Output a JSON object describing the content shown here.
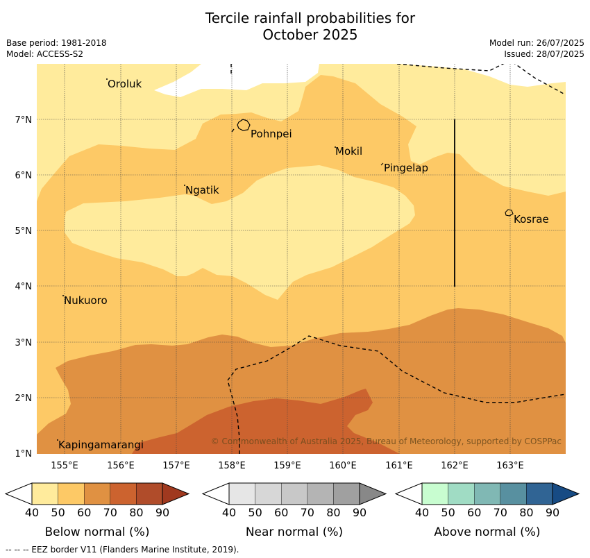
{
  "title_line1": "Tercile rainfall probabilities for",
  "title_line2": "October 2025",
  "meta": {
    "base_period": "Base period: 1981-2018",
    "model": "Model: ACCESS-S2",
    "model_run": "Model run: 26/07/2025",
    "issued": "Issued: 28/07/2025"
  },
  "map": {
    "lon_labels": [
      "155°E",
      "156°E",
      "157°E",
      "158°E",
      "159°E",
      "160°E",
      "161°E",
      "162°E",
      "163°E"
    ],
    "lat_labels": [
      "1°N",
      "2°N",
      "3°N",
      "4°N",
      "5°N",
      "6°N",
      "7°N"
    ],
    "places": {
      "oroluk": "Oroluk",
      "pohnpei": "Pohnpei",
      "mokil": "Mokil",
      "pingelap": "Pingelap",
      "ngatik": "Ngatik",
      "kosrae": "Kosrae",
      "nukuoro": "Nukuoro",
      "kapingamarangi": "Kapingamarangi"
    },
    "copyright": "© Commonwealth of Australia 2025, Bureau of Meteorology, supported by COSPPac",
    "colors": {
      "below_40_50": "#ffeb9c",
      "below_50_60": "#fdc966",
      "below_60_70": "#e09142",
      "below_70_80": "#cc632f"
    }
  },
  "legend": {
    "ticks": [
      "40",
      "50",
      "60",
      "70",
      "80",
      "90"
    ],
    "below_label": "Below normal (%)",
    "near_label": "Near normal (%)",
    "above_label": "Above normal (%)",
    "below_colors": [
      "#ffeb9c",
      "#fdc966",
      "#e09142",
      "#cc632f",
      "#b04c2a",
      "#a0391f"
    ],
    "near_colors": [
      "#e6e6e6",
      "#d7d7d7",
      "#c8c8c8",
      "#b4b4b4",
      "#a0a0a0",
      "#888888"
    ],
    "above_colors": [
      "#c8fdd0",
      "#a0dcc4",
      "#80b8b4",
      "#5890a0",
      "#306494",
      "#174b84"
    ]
  },
  "footnote": "--  --  -- EEZ border V11 (Flanders Marine Institute, 2019)."
}
